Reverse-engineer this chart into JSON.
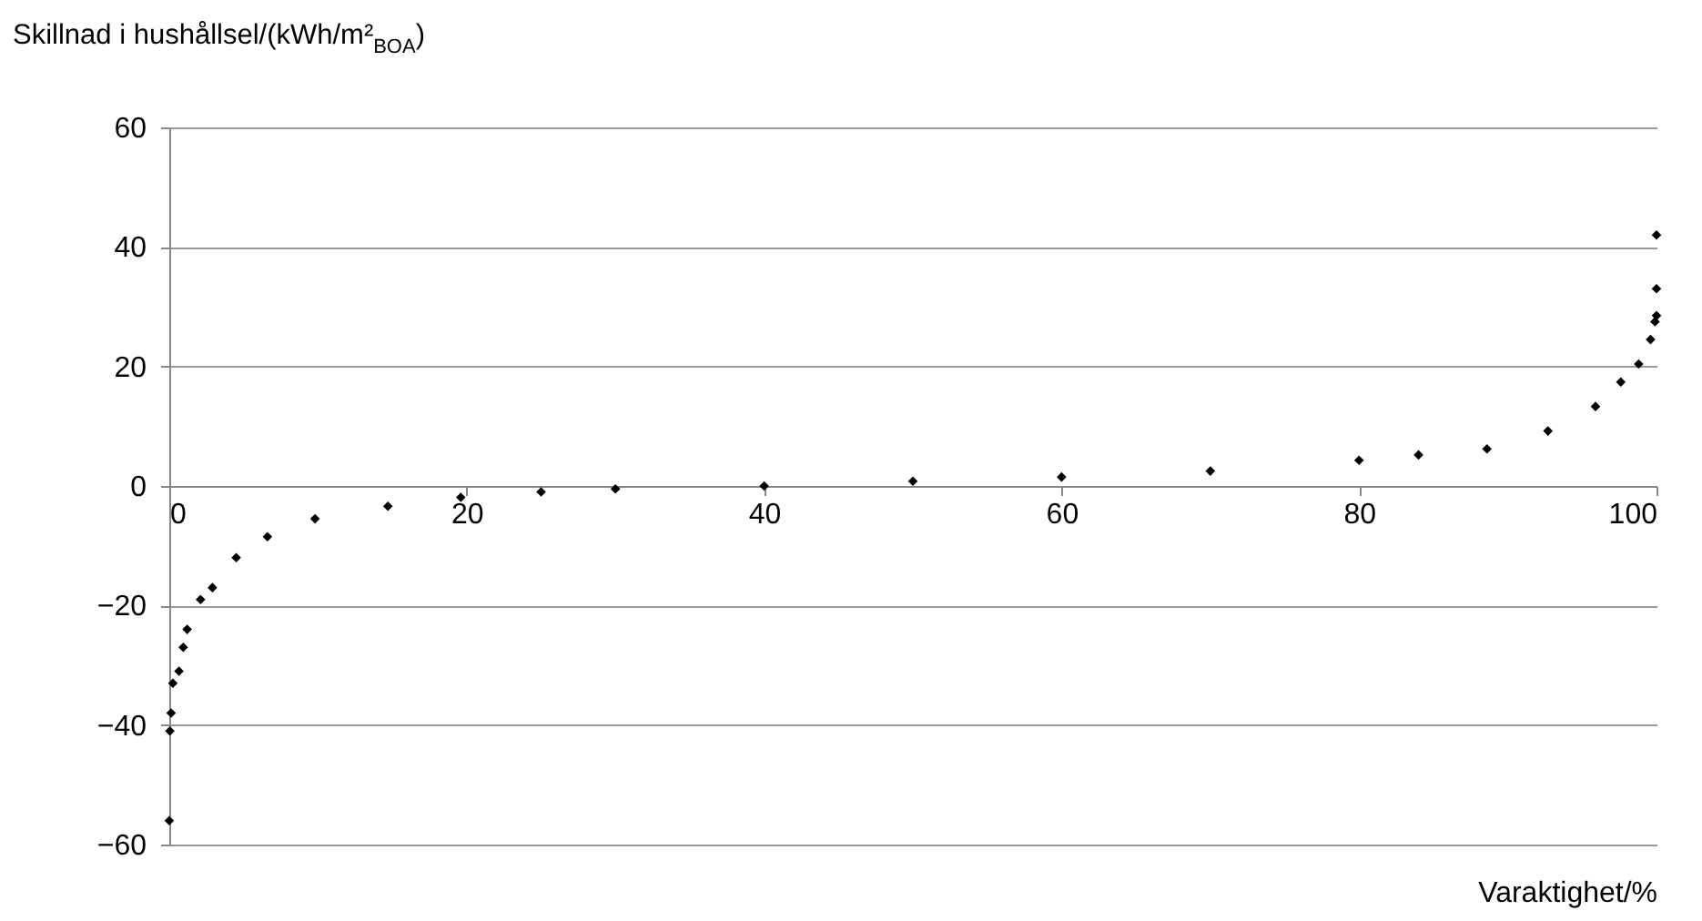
{
  "chart_data": {
    "type": "scatter",
    "ylabel": "Skillnad i hushållsel/(kWh/m²$_{BOA}$)",
    "xlabel": "Varaktighet/%",
    "series": [
      {
        "color": "#000000",
        "x": [
          0,
          0.04,
          0.12,
          0.24,
          0.65,
          0.94,
          1.2,
          2.1,
          2.9,
          4.5,
          6.6,
          9.8,
          14.7,
          19.6,
          25,
          30,
          40,
          50,
          60,
          70,
          80,
          84,
          88.6,
          92.7,
          95.9,
          97.6,
          98.8,
          99.6,
          99.9,
          100,
          100,
          100
        ],
        "values": [
          -56,
          -41,
          -38,
          -33,
          -31,
          -27,
          -24,
          -19,
          -17,
          -12,
          -8.5,
          -5.5,
          -3.4,
          -1.9,
          -1.0,
          -0.5,
          0,
          0.8,
          1.5,
          2.5,
          4.3,
          5.2,
          6.2,
          9.2,
          13.3,
          17.4,
          20.4,
          24.5,
          27.5,
          28.5,
          33,
          42
        ]
      }
    ],
    "xlim": [
      0,
      100
    ],
    "xticks": [
      0,
      20,
      40,
      60,
      80,
      100
    ],
    "ylim": [
      -60,
      60
    ],
    "yticks": [
      -60,
      -40,
      -20,
      0,
      20,
      40,
      60
    ],
    "grid": "y",
    "marker": "diamond"
  }
}
